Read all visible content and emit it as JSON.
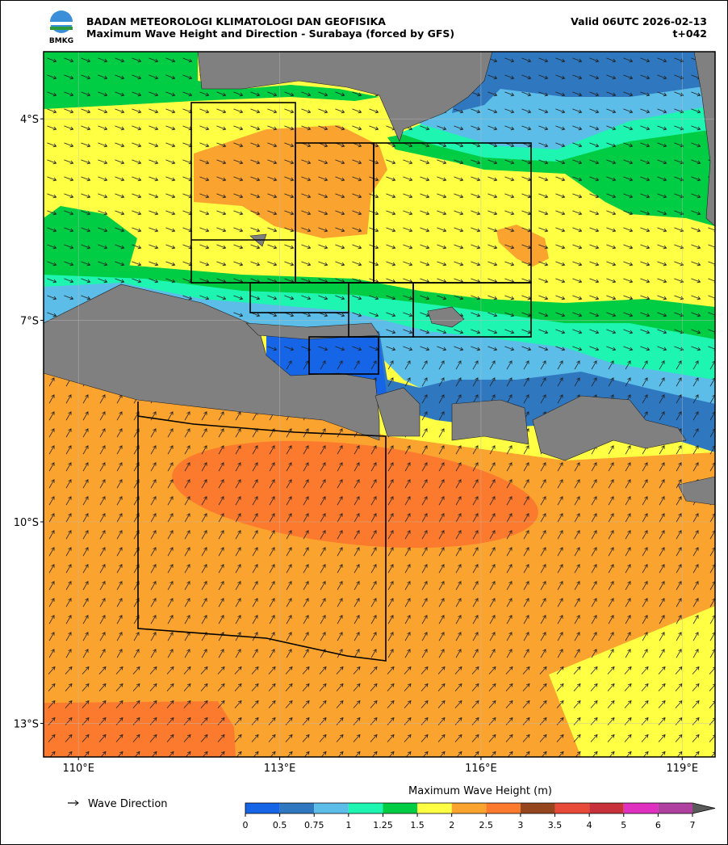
{
  "header": {
    "agency": "BADAN METEOROLOGI KLIMATOLOGI DAN GEOFISIKA",
    "product": "Maximum Wave Height and Direction - Surabaya (forced by GFS)",
    "valid": "Valid 06UTC 2026-02-13",
    "lead": "t+042",
    "logo_text": "BMKG"
  },
  "map": {
    "xlim": [
      109.48,
      119.49
    ],
    "ylim": [
      -13.5,
      -3.0
    ],
    "xticks": [
      {
        "value": 110,
        "label": "110°E"
      },
      {
        "value": 113,
        "label": "113°E"
      },
      {
        "value": 116,
        "label": "116°E"
      },
      {
        "value": 119,
        "label": "119°E"
      }
    ],
    "yticks": [
      {
        "value": -4,
        "label": "4°S"
      },
      {
        "value": -7,
        "label": "7°S"
      },
      {
        "value": -10,
        "label": "10°S"
      },
      {
        "value": -13,
        "label": "13°S"
      }
    ]
  },
  "legend": {
    "arrow_label": "Wave Direction"
  },
  "colorbar": {
    "title": "Maximum Wave Height (m)",
    "ticks": [
      0,
      0.5,
      0.75,
      1,
      1.25,
      1.5,
      2,
      2.5,
      3,
      3.5,
      4,
      5,
      6,
      7
    ],
    "colors": [
      "#1565e6",
      "#2f78c0",
      "#5cbde8",
      "#1ef5b0",
      "#00cc44",
      "#ffff44",
      "#fba32f",
      "#fb7a2e",
      "#96461e",
      "#e84a3a",
      "#c8303a",
      "#e030c0",
      "#b040a0",
      "#5a5a5a"
    ]
  }
}
